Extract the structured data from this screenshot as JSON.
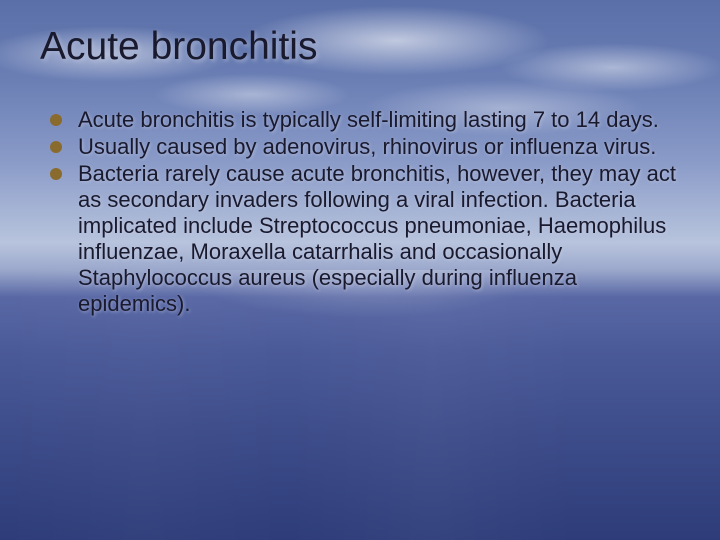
{
  "slide": {
    "title": "Acute bronchitis",
    "bullets": [
      "Acute bronchitis is typically self-limiting lasting 7 to 14 days.",
      "Usually caused by adenovirus, rhinovirus or influenza virus.",
      "Bacteria rarely cause acute bronchitis, however, they may act as secondary invaders following a viral infection. Bacteria implicated include Streptococcus pneumoniae, Haemophilus influenzae, Moraxella catarrhalis and occasionally Staphylococcus aureus (especially during influenza epidemics)."
    ],
    "style": {
      "title_fontsize": 39,
      "body_fontsize": 22,
      "text_color": "#1a1a2e",
      "bullet_color": "#8a6b2e",
      "background_gradient": [
        "#5a6fa8",
        "#6b7fb5",
        "#8a9bc8",
        "#b8c4dd",
        "#5968a5",
        "#3d4c8a",
        "#2e3d7a"
      ],
      "font_family": "Verdana"
    }
  }
}
